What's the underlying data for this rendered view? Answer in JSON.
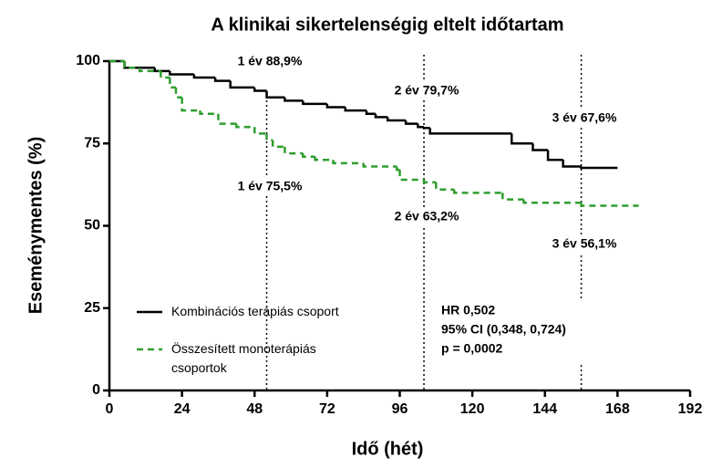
{
  "chart_data": {
    "type": "step",
    "title": "A klinikai sikertelenségig eltelt időtartam",
    "x_label": "Idő (hét)",
    "y_label": "Eseménymentes (%)",
    "xlim": [
      0,
      192
    ],
    "xticks": [
      0,
      24,
      48,
      72,
      96,
      120,
      144,
      168,
      192
    ],
    "ylim": [
      0,
      100
    ],
    "yticks": [
      0,
      25,
      50,
      75,
      100
    ],
    "reference_x": [
      52,
      104,
      156
    ],
    "series": [
      {
        "name": "Kombinációs terápiás csoport",
        "color": "#000000",
        "dash": false,
        "x": [
          0,
          5,
          15,
          20,
          28,
          35,
          40,
          48,
          52,
          58,
          64,
          72,
          78,
          85,
          88,
          92,
          98,
          102,
          104,
          106,
          133,
          140,
          145,
          150,
          156,
          168
        ],
        "values": [
          100,
          98,
          97,
          96,
          95,
          94,
          92,
          91,
          89,
          88,
          87,
          86,
          85,
          84,
          83,
          82,
          81,
          80,
          79.7,
          78,
          75,
          73,
          70,
          68,
          67.6,
          67.6
        ]
      },
      {
        "name": "Összesített monoterápiás csoportok",
        "color": "#2e9e2e",
        "dash": true,
        "x": [
          0,
          5,
          10,
          17,
          20,
          22,
          24,
          30,
          36,
          42,
          48,
          52,
          54,
          58,
          64,
          68,
          74,
          84,
          95,
          96,
          104,
          108,
          114,
          130,
          137,
          156,
          175
        ],
        "values": [
          100,
          98,
          97,
          95,
          92,
          89,
          85,
          84,
          81,
          80,
          78,
          76,
          74,
          72,
          71,
          70,
          69,
          68,
          67,
          64,
          63.2,
          61,
          60,
          58,
          57,
          56.1,
          56.1
        ]
      }
    ],
    "annotations": [
      "1 év 88,9%",
      "1 év 75,5%",
      "2 év 79,7%",
      "2 év 63,2%",
      "3 év 67,6%",
      "3 év 56,1%"
    ],
    "stats": [
      "HR 0,502",
      "95% CI (0,348, 0,724)",
      "p = 0,0002"
    ]
  }
}
